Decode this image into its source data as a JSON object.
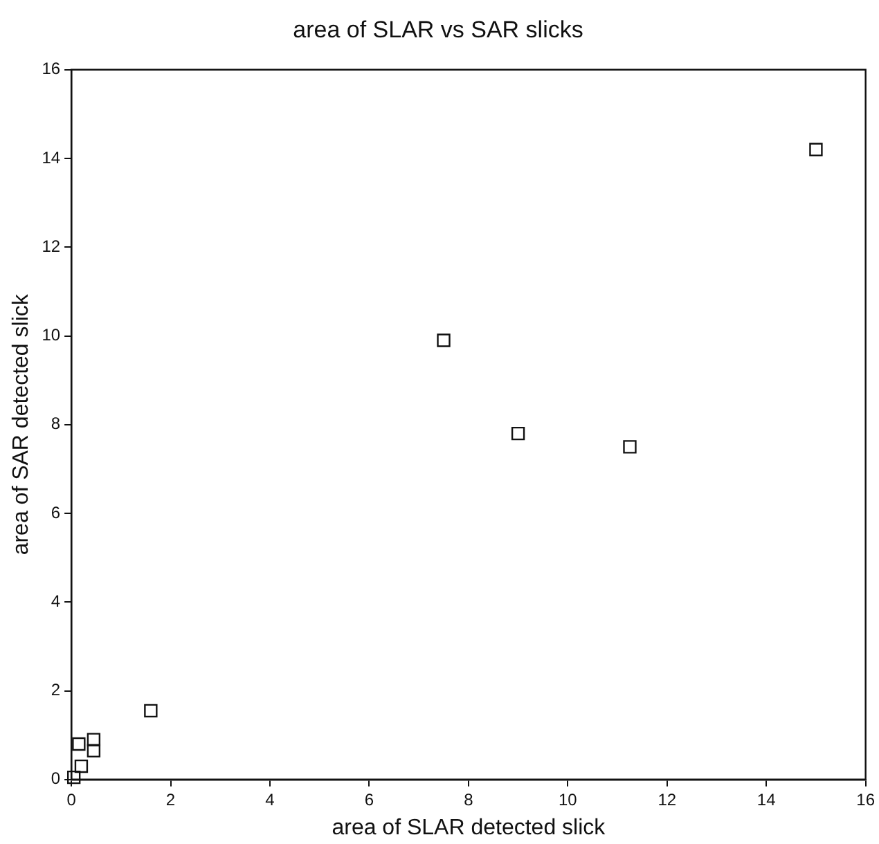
{
  "chart_data": {
    "type": "scatter",
    "title": "area of SLAR vs SAR slicks",
    "xlabel": "area of SLAR detected slick",
    "ylabel": "area of SAR detected slick",
    "x": [
      0.05,
      0.2,
      0.15,
      0.45,
      0.45,
      1.6,
      7.5,
      9.0,
      11.25,
      15.0
    ],
    "values": [
      0.05,
      0.3,
      0.8,
      0.9,
      0.65,
      1.55,
      9.9,
      7.8,
      7.5,
      14.2
    ],
    "color": "#111111",
    "marker": "square",
    "grid": false,
    "legend": false,
    "xlim": [
      0,
      16
    ],
    "xticks": [
      0,
      2,
      4,
      6,
      8,
      10,
      12,
      14,
      16
    ],
    "ylim": [
      0,
      16
    ],
    "yticks": [
      0,
      2,
      4,
      6,
      8,
      10,
      12,
      14,
      16
    ]
  }
}
